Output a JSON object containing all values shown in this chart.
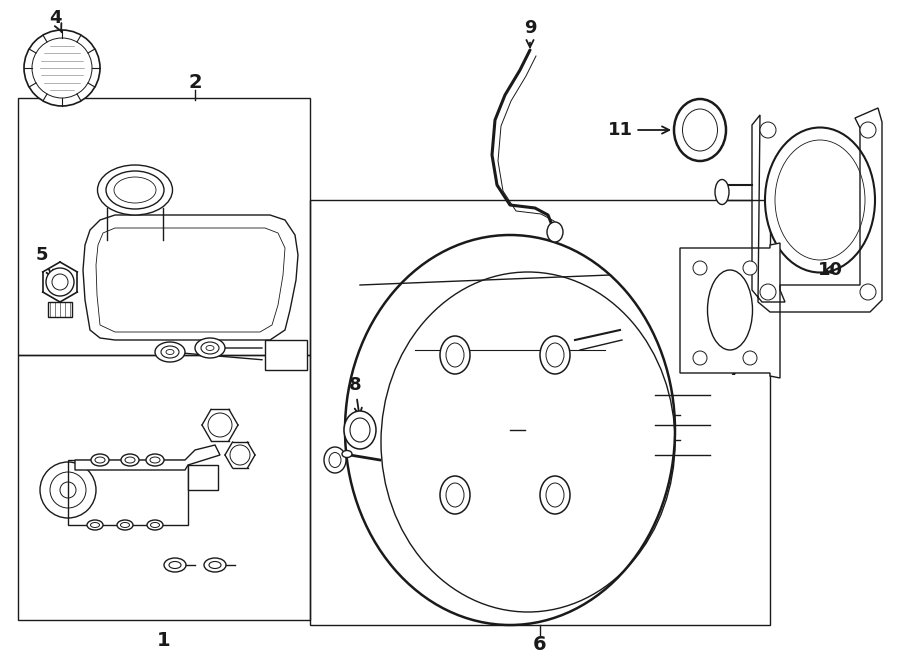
{
  "bg_color": "#ffffff",
  "line_color": "#1a1a1a",
  "fig_w": 9.0,
  "fig_h": 6.61,
  "dpi": 100,
  "xmax": 900,
  "ymax": 661
}
